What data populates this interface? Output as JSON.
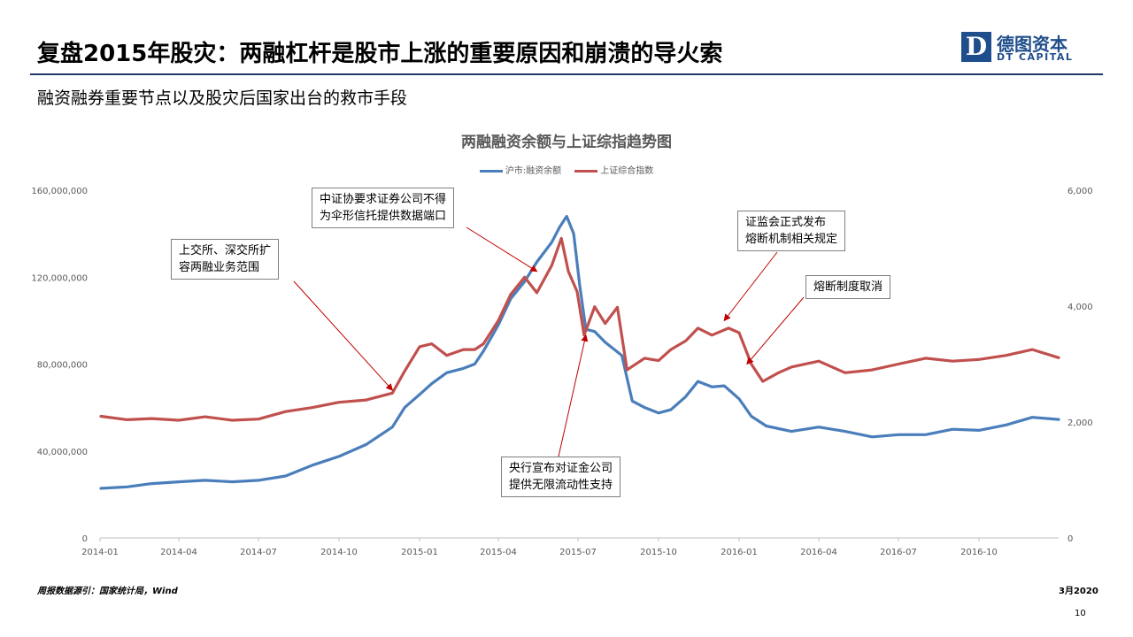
{
  "header": {
    "title": "复盘2015年股灾：两融杠杆是股市上涨的重要原因和崩溃的导火索",
    "subtitle": "融资融券重要节点以及股灾后国家出台的救市手段"
  },
  "logo": {
    "mark": "D",
    "cn": "德图资本",
    "en": "DT CAPITAL",
    "color": "#1f4e8c"
  },
  "footer": {
    "source": "周报数据源引：国家统计局，Wind",
    "date": "3月2020",
    "page": "10"
  },
  "chart_data": {
    "type": "line",
    "title": "两融融资余额与上证综指趋势图",
    "legend_position": "top",
    "grid": false,
    "x_ticks": [
      "2014-01",
      "2014-04",
      "2014-07",
      "2014-10",
      "2015-01",
      "2015-04",
      "2015-07",
      "2015-10",
      "2016-01",
      "2016-04",
      "2016-07",
      "2016-10"
    ],
    "x_range": [
      "2014-01",
      "2016-12-31"
    ],
    "y_left": {
      "range": [
        0,
        160000000
      ],
      "ticks": [
        "0",
        "40,000,000",
        "80,000,000",
        "120,000,000",
        "160,000,000"
      ]
    },
    "y_right": {
      "range": [
        0,
        6000
      ],
      "ticks": [
        "0",
        "2,000",
        "4,000",
        "6,000"
      ]
    },
    "series": [
      {
        "name": "沪市:融资余额",
        "axis": "left",
        "color": "#4a7ebb",
        "points": [
          [
            "2014-01-02",
            22800000
          ],
          [
            "2014-02-01",
            23500000
          ],
          [
            "2014-03-01",
            25000000
          ],
          [
            "2014-04-01",
            25800000
          ],
          [
            "2014-05-01",
            26500000
          ],
          [
            "2014-06-01",
            25800000
          ],
          [
            "2014-07-01",
            26500000
          ],
          [
            "2014-08-01",
            28500000
          ],
          [
            "2014-09-01",
            33500000
          ],
          [
            "2014-10-01",
            37500000
          ],
          [
            "2014-11-01",
            43000000
          ],
          [
            "2014-12-01",
            51000000
          ],
          [
            "2014-12-15",
            60000000
          ],
          [
            "2015-01-01",
            66000000
          ],
          [
            "2015-01-15",
            71000000
          ],
          [
            "2015-02-01",
            76000000
          ],
          [
            "2015-02-20",
            78000000
          ],
          [
            "2015-03-05",
            80000000
          ],
          [
            "2015-03-15",
            86000000
          ],
          [
            "2015-04-01",
            98000000
          ],
          [
            "2015-04-15",
            110000000
          ],
          [
            "2015-05-01",
            118000000
          ],
          [
            "2015-05-15",
            127000000
          ],
          [
            "2015-06-01",
            136000000
          ],
          [
            "2015-06-10",
            143000000
          ],
          [
            "2015-06-18",
            148000000
          ],
          [
            "2015-06-26",
            140000000
          ],
          [
            "2015-07-03",
            116000000
          ],
          [
            "2015-07-10",
            96000000
          ],
          [
            "2015-07-20",
            95000000
          ],
          [
            "2015-08-01",
            90000000
          ],
          [
            "2015-08-20",
            84000000
          ],
          [
            "2015-09-01",
            63000000
          ],
          [
            "2015-09-15",
            60000000
          ],
          [
            "2015-10-01",
            57500000
          ],
          [
            "2015-10-15",
            59000000
          ],
          [
            "2015-11-01",
            65000000
          ],
          [
            "2015-11-15",
            72000000
          ],
          [
            "2015-12-01",
            69500000
          ],
          [
            "2015-12-15",
            70000000
          ],
          [
            "2016-01-01",
            64000000
          ],
          [
            "2016-01-15",
            56000000
          ],
          [
            "2016-02-01",
            51500000
          ],
          [
            "2016-03-01",
            49000000
          ],
          [
            "2016-04-01",
            51000000
          ],
          [
            "2016-05-01",
            49000000
          ],
          [
            "2016-06-01",
            46500000
          ],
          [
            "2016-07-01",
            47500000
          ],
          [
            "2016-08-01",
            47500000
          ],
          [
            "2016-09-01",
            50000000
          ],
          [
            "2016-10-01",
            49500000
          ],
          [
            "2016-11-01",
            52000000
          ],
          [
            "2016-12-01",
            55500000
          ],
          [
            "2016-12-31",
            54500000
          ]
        ]
      },
      {
        "name": "上证综合指数",
        "axis": "right",
        "color": "#c0504d",
        "points": [
          [
            "2014-01-02",
            2100
          ],
          [
            "2014-02-01",
            2040
          ],
          [
            "2014-03-01",
            2060
          ],
          [
            "2014-04-01",
            2030
          ],
          [
            "2014-05-01",
            2090
          ],
          [
            "2014-06-01",
            2030
          ],
          [
            "2014-07-01",
            2050
          ],
          [
            "2014-08-01",
            2180
          ],
          [
            "2014-09-01",
            2250
          ],
          [
            "2014-10-01",
            2340
          ],
          [
            "2014-11-01",
            2380
          ],
          [
            "2014-12-01",
            2500
          ],
          [
            "2014-12-15",
            2880
          ],
          [
            "2015-01-01",
            3300
          ],
          [
            "2015-01-15",
            3350
          ],
          [
            "2015-02-01",
            3150
          ],
          [
            "2015-02-20",
            3250
          ],
          [
            "2015-03-05",
            3250
          ],
          [
            "2015-03-15",
            3350
          ],
          [
            "2015-04-01",
            3750
          ],
          [
            "2015-04-15",
            4200
          ],
          [
            "2015-05-01",
            4500
          ],
          [
            "2015-05-15",
            4230
          ],
          [
            "2015-06-01",
            4700
          ],
          [
            "2015-06-12",
            5170
          ],
          [
            "2015-06-20",
            4600
          ],
          [
            "2015-06-30",
            4250
          ],
          [
            "2015-07-08",
            3500
          ],
          [
            "2015-07-20",
            3990
          ],
          [
            "2015-08-01",
            3700
          ],
          [
            "2015-08-15",
            3980
          ],
          [
            "2015-08-26",
            2900
          ],
          [
            "2015-09-15",
            3100
          ],
          [
            "2015-10-01",
            3060
          ],
          [
            "2015-10-15",
            3250
          ],
          [
            "2015-11-01",
            3400
          ],
          [
            "2015-11-15",
            3620
          ],
          [
            "2015-12-01",
            3500
          ],
          [
            "2015-12-20",
            3620
          ],
          [
            "2016-01-01",
            3540
          ],
          [
            "2016-01-15",
            3000
          ],
          [
            "2016-01-28",
            2700
          ],
          [
            "2016-02-15",
            2850
          ],
          [
            "2016-03-01",
            2950
          ],
          [
            "2016-04-01",
            3050
          ],
          [
            "2016-05-01",
            2850
          ],
          [
            "2016-06-01",
            2900
          ],
          [
            "2016-07-01",
            3000
          ],
          [
            "2016-08-01",
            3100
          ],
          [
            "2016-09-01",
            3050
          ],
          [
            "2016-10-01",
            3080
          ],
          [
            "2016-11-01",
            3150
          ],
          [
            "2016-12-01",
            3250
          ],
          [
            "2016-12-31",
            3110
          ]
        ]
      }
    ],
    "annotations": [
      {
        "text": "上交所、深交所扩\n容两融业务范围",
        "target": [
          "2014-12-01",
          2550
        ]
      },
      {
        "text": "中证协要求证券公司不得\n为伞形信托提供数据端口",
        "target": [
          "2015-05-15",
          4600
        ]
      },
      {
        "text": "央行宣布对证金公司\n提供无限流动性支持",
        "target": [
          "2015-07-10",
          3500
        ]
      },
      {
        "text": "证监会正式发布\n熔断机制相关规定",
        "target": [
          "2015-12-15",
          3750
        ]
      },
      {
        "text": "熔断制度取消",
        "target": [
          "2016-01-10",
          3000
        ]
      }
    ]
  }
}
